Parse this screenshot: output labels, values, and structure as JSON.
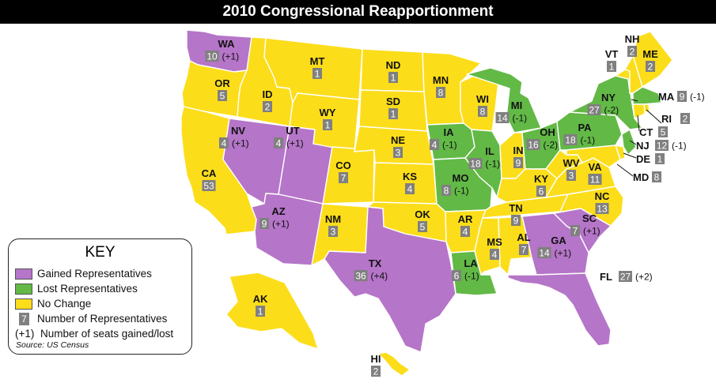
{
  "title": "2010 Congressional Reapportionment",
  "colors": {
    "gained": "#b575c8",
    "lost": "#62b946",
    "nochange": "#fcdd1a",
    "badge": "#808080",
    "border": "#ffffff"
  },
  "key": {
    "title": "KEY",
    "gained": "Gained Representatives",
    "lost": "Lost Representatives",
    "nochange": "No Change",
    "number_badge": "7",
    "number_text": "Number of Representatives",
    "change_sample": "(+1)",
    "change_text": "Number of seats gained/lost",
    "source": "Source: US Census"
  },
  "states": [
    {
      "abbr": "WA",
      "reps": "10",
      "change": "(+1)",
      "status": "gained"
    },
    {
      "abbr": "OR",
      "reps": "5",
      "change": "",
      "status": "nochange"
    },
    {
      "abbr": "CA",
      "reps": "53",
      "change": "",
      "status": "nochange"
    },
    {
      "abbr": "ID",
      "reps": "2",
      "change": "",
      "status": "nochange"
    },
    {
      "abbr": "NV",
      "reps": "4",
      "change": "(+1)",
      "status": "gained"
    },
    {
      "abbr": "UT",
      "reps": "4",
      "change": "(+1)",
      "status": "gained"
    },
    {
      "abbr": "AZ",
      "reps": "9",
      "change": "(+1)",
      "status": "gained"
    },
    {
      "abbr": "MT",
      "reps": "1",
      "change": "",
      "status": "nochange"
    },
    {
      "abbr": "WY",
      "reps": "1",
      "change": "",
      "status": "nochange"
    },
    {
      "abbr": "CO",
      "reps": "7",
      "change": "",
      "status": "nochange"
    },
    {
      "abbr": "NM",
      "reps": "3",
      "change": "",
      "status": "nochange"
    },
    {
      "abbr": "ND",
      "reps": "1",
      "change": "",
      "status": "nochange"
    },
    {
      "abbr": "SD",
      "reps": "1",
      "change": "",
      "status": "nochange"
    },
    {
      "abbr": "NE",
      "reps": "3",
      "change": "",
      "status": "nochange"
    },
    {
      "abbr": "KS",
      "reps": "4",
      "change": "",
      "status": "nochange"
    },
    {
      "abbr": "OK",
      "reps": "5",
      "change": "",
      "status": "nochange"
    },
    {
      "abbr": "TX",
      "reps": "36",
      "change": "(+4)",
      "status": "gained"
    },
    {
      "abbr": "MN",
      "reps": "8",
      "change": "",
      "status": "nochange"
    },
    {
      "abbr": "IA",
      "reps": "4",
      "change": "(-1)",
      "status": "lost"
    },
    {
      "abbr": "MO",
      "reps": "8",
      "change": "(-1)",
      "status": "lost"
    },
    {
      "abbr": "AR",
      "reps": "4",
      "change": "",
      "status": "nochange"
    },
    {
      "abbr": "LA",
      "reps": "6",
      "change": "(-1)",
      "status": "lost"
    },
    {
      "abbr": "WI",
      "reps": "8",
      "change": "",
      "status": "nochange"
    },
    {
      "abbr": "IL",
      "reps": "18",
      "change": "(-1)",
      "status": "lost"
    },
    {
      "abbr": "MI",
      "reps": "14",
      "change": "(-1)",
      "status": "lost"
    },
    {
      "abbr": "IN",
      "reps": "9",
      "change": "",
      "status": "nochange"
    },
    {
      "abbr": "OH",
      "reps": "16",
      "change": "(-2)",
      "status": "lost"
    },
    {
      "abbr": "KY",
      "reps": "6",
      "change": "",
      "status": "nochange"
    },
    {
      "abbr": "TN",
      "reps": "9",
      "change": "",
      "status": "nochange"
    },
    {
      "abbr": "MS",
      "reps": "4",
      "change": "",
      "status": "nochange"
    },
    {
      "abbr": "AL",
      "reps": "7",
      "change": "",
      "status": "nochange"
    },
    {
      "abbr": "GA",
      "reps": "14",
      "change": "(+1)",
      "status": "gained"
    },
    {
      "abbr": "FL",
      "reps": "27",
      "change": "(+2)",
      "status": "gained"
    },
    {
      "abbr": "SC",
      "reps": "7",
      "change": "(+1)",
      "status": "gained"
    },
    {
      "abbr": "NC",
      "reps": "13",
      "change": "",
      "status": "nochange"
    },
    {
      "abbr": "VA",
      "reps": "11",
      "change": "",
      "status": "nochange"
    },
    {
      "abbr": "WV",
      "reps": "3",
      "change": "",
      "status": "nochange"
    },
    {
      "abbr": "PA",
      "reps": "18",
      "change": "(-1)",
      "status": "lost"
    },
    {
      "abbr": "NY",
      "reps": "27",
      "change": "(-2)",
      "status": "lost"
    },
    {
      "abbr": "VT",
      "reps": "1",
      "change": "",
      "status": "nochange"
    },
    {
      "abbr": "NH",
      "reps": "2",
      "change": "",
      "status": "nochange"
    },
    {
      "abbr": "ME",
      "reps": "2",
      "change": "",
      "status": "nochange"
    },
    {
      "abbr": "MA",
      "reps": "9",
      "change": "(-1)",
      "status": "lost"
    },
    {
      "abbr": "RI",
      "reps": "2",
      "change": "",
      "status": "nochange"
    },
    {
      "abbr": "CT",
      "reps": "5",
      "change": "",
      "status": "nochange"
    },
    {
      "abbr": "NJ",
      "reps": "12",
      "change": "(-1)",
      "status": "lost"
    },
    {
      "abbr": "DE",
      "reps": "1",
      "change": "",
      "status": "nochange"
    },
    {
      "abbr": "MD",
      "reps": "8",
      "change": "",
      "status": "nochange"
    },
    {
      "abbr": "AK",
      "reps": "1",
      "change": "",
      "status": "nochange"
    },
    {
      "abbr": "HI",
      "reps": "2",
      "change": "",
      "status": "nochange"
    }
  ]
}
